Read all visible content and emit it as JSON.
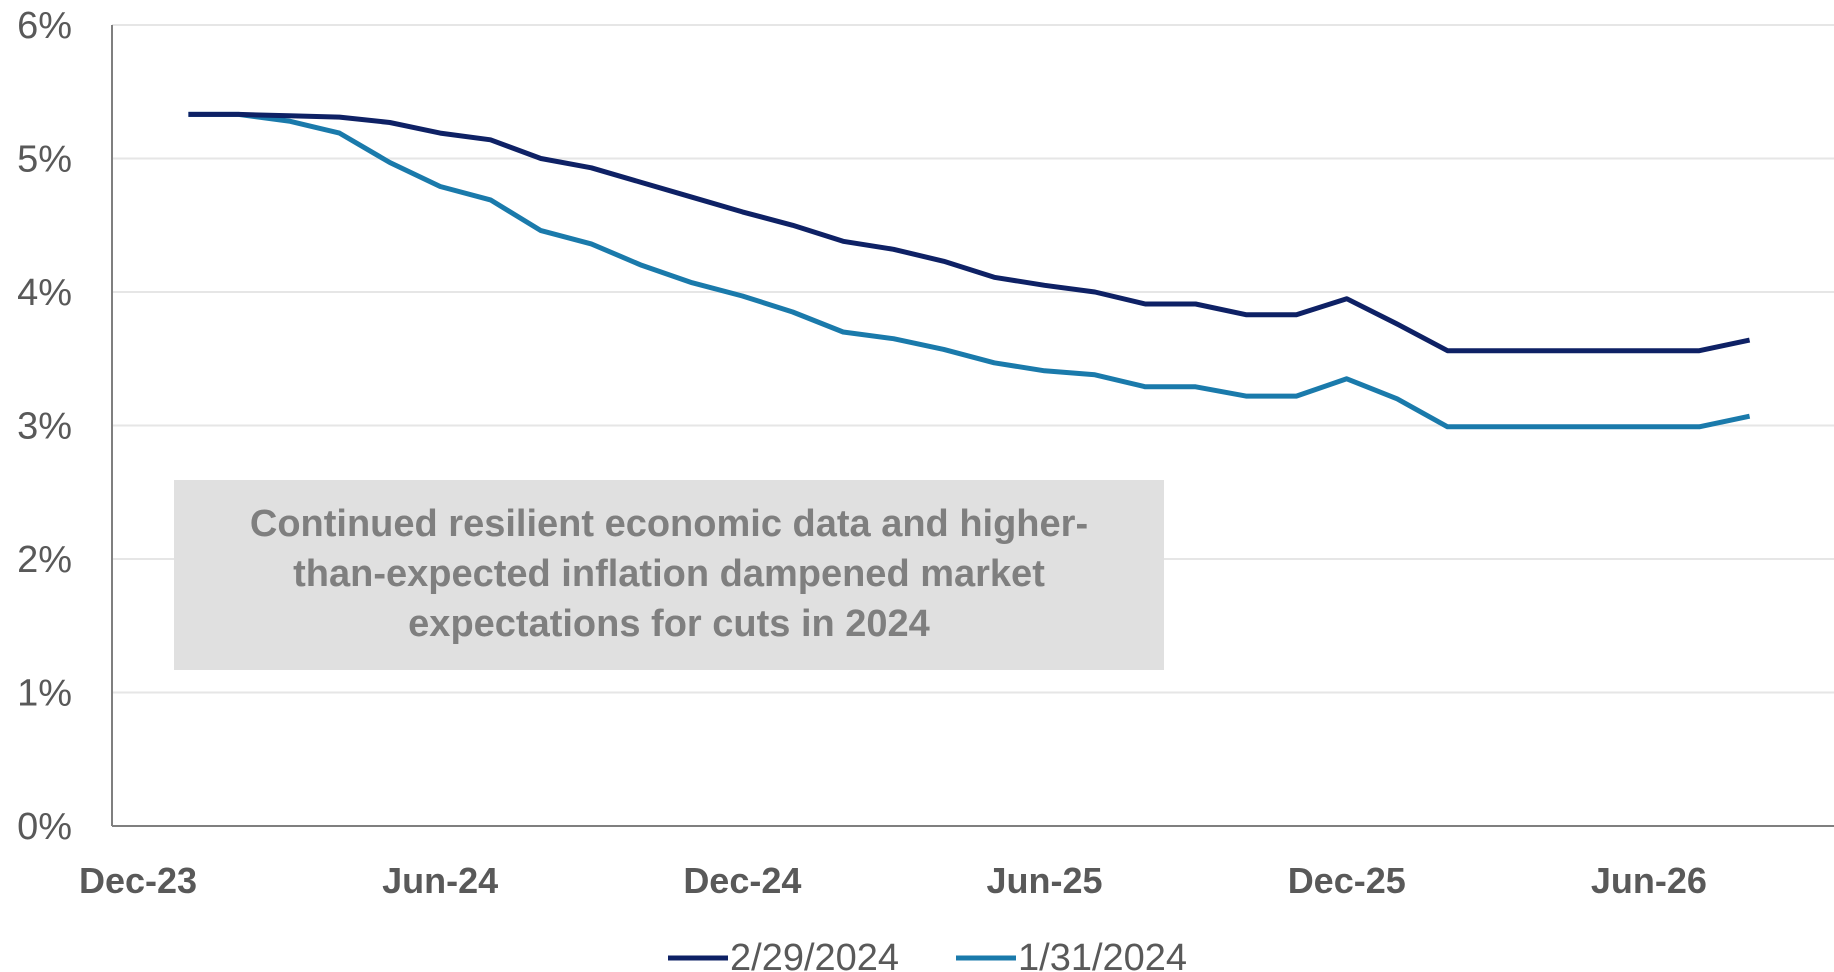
{
  "chart_data": {
    "type": "line",
    "title": "",
    "xlabel": "",
    "ylabel": "",
    "x_ticks": [
      "Dec-23",
      "Jun-24",
      "Dec-24",
      "Jun-25",
      "Dec-25",
      "Jun-26"
    ],
    "y_ticks": [
      "0%",
      "1%",
      "2%",
      "3%",
      "4%",
      "5%",
      "6%"
    ],
    "ylim": [
      0,
      6
    ],
    "xlim": [
      "2023-12",
      "2026-09"
    ],
    "x": [
      "2024-01",
      "2024-02",
      "2024-03",
      "2024-04",
      "2024-05",
      "2024-06",
      "2024-07",
      "2024-08",
      "2024-09",
      "2024-10",
      "2024-11",
      "2024-12",
      "2025-01",
      "2025-02",
      "2025-03",
      "2025-04",
      "2025-05",
      "2025-06",
      "2025-07",
      "2025-08",
      "2025-09",
      "2025-10",
      "2025-11",
      "2025-12",
      "2026-01",
      "2026-02",
      "2026-03",
      "2026-04",
      "2026-05",
      "2026-06",
      "2026-07",
      "2026-08"
    ],
    "series": [
      {
        "name": "2/29/2024",
        "color": "#0e2165",
        "values": [
          5.33,
          5.33,
          5.32,
          5.31,
          5.27,
          5.19,
          5.14,
          5.0,
          4.93,
          4.82,
          4.71,
          4.6,
          4.5,
          4.38,
          4.32,
          4.23,
          4.11,
          4.05,
          4.0,
          3.91,
          3.91,
          3.83,
          3.83,
          3.95,
          3.76,
          3.56,
          3.56,
          3.56,
          3.56,
          3.56,
          3.56,
          3.64
        ]
      },
      {
        "name": "1/31/2024",
        "color": "#1a7aab",
        "values": [
          5.33,
          5.33,
          5.28,
          5.19,
          4.97,
          4.79,
          4.69,
          4.46,
          4.36,
          4.2,
          4.07,
          3.97,
          3.85,
          3.7,
          3.65,
          3.57,
          3.47,
          3.41,
          3.38,
          3.29,
          3.29,
          3.22,
          3.22,
          3.35,
          3.2,
          2.99,
          2.99,
          2.99,
          2.99,
          2.99,
          2.99,
          3.07
        ]
      }
    ],
    "grid": true,
    "legend_position": "bottom",
    "annotation": {
      "lines": [
        "Continued resilient economic data and higher-",
        "than-expected inflation dampened market",
        "expectations for cuts in 2024"
      ],
      "background": "#e0e0e0"
    }
  }
}
